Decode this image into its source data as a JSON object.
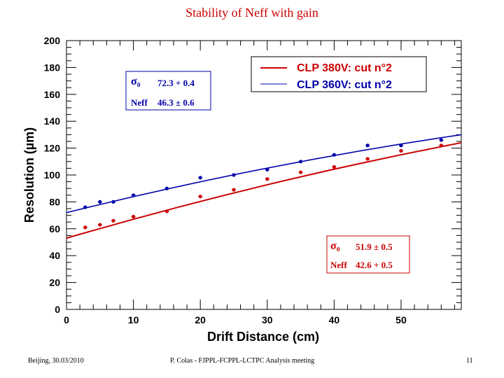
{
  "title": "Stability of Neff with gain",
  "footer": {
    "left": "Beijing, 30.03/2010",
    "center": "P. Colas  -  FJPPL-FCPPL-LCTPC Analysis meeting",
    "page": "11"
  },
  "chart_data": {
    "type": "scatter",
    "xlabel": "Drift Distance (cm)",
    "ylabel": "Resolution (µm)",
    "xlim": [
      0,
      59
    ],
    "ylim": [
      0,
      200
    ],
    "xticks": [
      "0",
      "10",
      "20",
      "30",
      "40",
      "50"
    ],
    "yticks": [
      "0",
      "20",
      "40",
      "60",
      "80",
      "100",
      "120",
      "140",
      "160",
      "180",
      "200"
    ],
    "legend_position": "top-right",
    "grid": false,
    "series": [
      {
        "name": "CLP 380V: cut n°2",
        "color": "#cc0000",
        "x": [
          2.8,
          5,
          7,
          10,
          15,
          20,
          25,
          30,
          35,
          40,
          45,
          50,
          56
        ],
        "y": [
          61,
          63,
          66,
          69,
          73,
          84,
          89,
          97,
          102,
          106,
          112,
          118,
          122
        ],
        "fit": {
          "x0": 0,
          "x1": 59,
          "y0": 53,
          "y1": 124
        }
      },
      {
        "name": "CLP 360V: cut n°2",
        "color": "#0000aa",
        "x": [
          2.8,
          5,
          7,
          10,
          15,
          20,
          25,
          30,
          35,
          40,
          45,
          50,
          56
        ],
        "y": [
          76,
          80,
          80,
          85,
          90,
          98,
          100,
          104,
          110,
          115,
          122,
          122,
          126
        ],
        "fit": {
          "x0": 0,
          "x1": 59,
          "y0": 72,
          "y1": 130
        }
      }
    ],
    "fit_boxes": [
      {
        "series": "CLP 360V: cut n°2",
        "color": "#0000aa",
        "sigma_label": "σ₀",
        "sigma_value": "72.3 + 0.4",
        "neff_label": "Neff",
        "neff_value": "46.3 ± 0.6"
      },
      {
        "series": "CLP 380V: cut n°2",
        "color": "#cc0000",
        "sigma_label": "σ₀",
        "sigma_value": "51.9 ± 0.5",
        "neff_label": "Neff",
        "neff_value": "42.6 + 0.5"
      }
    ]
  }
}
